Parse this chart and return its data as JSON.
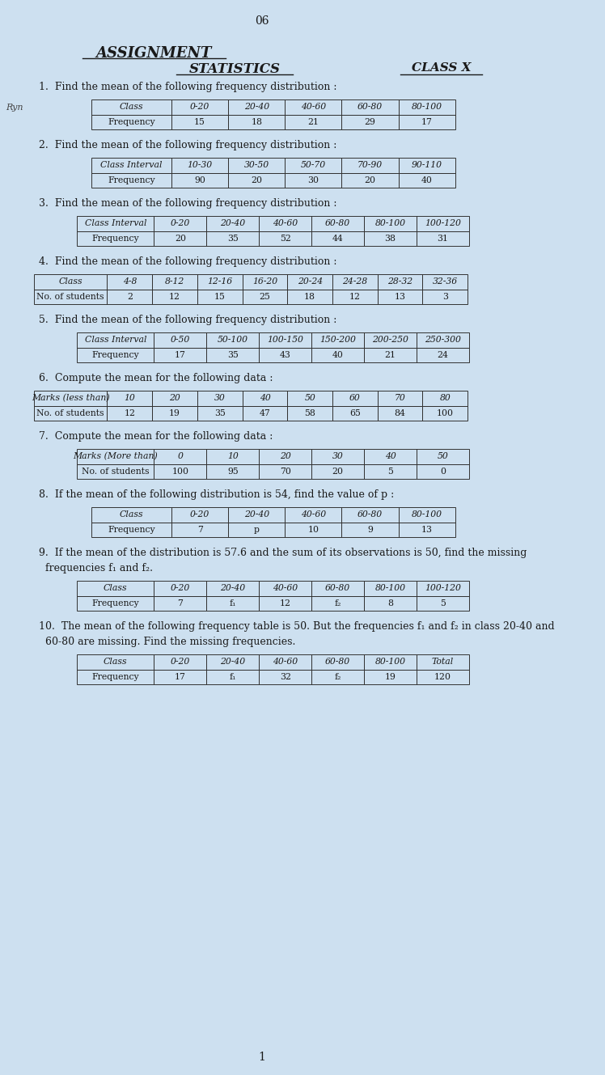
{
  "title": "ASSIGNMENT",
  "subtitle": "STATISTICS",
  "class_label": "CLASS X",
  "page_number": "06",
  "background_color": "#cde0f0",
  "text_color": "#1a1a1a",
  "questions": [
    {
      "number": "1.",
      "text": "Find the mean of the following frequency distribution :",
      "annotation": "Ryn",
      "table": {
        "headers": [
          "Class",
          "0-20",
          "20-40",
          "40-60",
          "60-80",
          "80-100"
        ],
        "rows": [
          [
            "Frequency",
            "15",
            "18",
            "21",
            "29",
            "17"
          ]
        ]
      }
    },
    {
      "number": "2.",
      "text": "Find the mean of the following frequency distribution :",
      "table": {
        "headers": [
          "Class Interval",
          "10-30",
          "30-50",
          "50-70",
          "70-90",
          "90-110"
        ],
        "rows": [
          [
            "Frequency",
            "90",
            "20",
            "30",
            "20",
            "40"
          ]
        ]
      }
    },
    {
      "number": "3.",
      "text": "Find the mean of the following frequency distribution :",
      "table": {
        "headers": [
          "Class Interval",
          "0-20",
          "20-40",
          "40-60",
          "60-80",
          "80-100",
          "100-120"
        ],
        "rows": [
          [
            "Frequency",
            "20",
            "35",
            "52",
            "44",
            "38",
            "31"
          ]
        ]
      }
    },
    {
      "number": "4.",
      "text": "Find the mean of the following frequency distribution :",
      "table": {
        "headers": [
          "Class",
          "4-8",
          "8-12",
          "12-16",
          "16-20",
          "20-24",
          "24-28",
          "28-32",
          "32-36"
        ],
        "rows": [
          [
            "No. of students",
            "2",
            "12",
            "15",
            "25",
            "18",
            "12",
            "13",
            "3"
          ]
        ]
      }
    },
    {
      "number": "5.",
      "text": "Find the mean of the following frequency distribution :",
      "table": {
        "headers": [
          "Class Interval",
          "0-50",
          "50-100",
          "100-150",
          "150-200",
          "200-250",
          "250-300"
        ],
        "rows": [
          [
            "Frequency",
            "17",
            "35",
            "43",
            "40",
            "21",
            "24"
          ]
        ]
      }
    },
    {
      "number": "6.",
      "text": "Compute the mean for the following data :",
      "table": {
        "headers": [
          "Marks (less than)",
          "10",
          "20",
          "30",
          "40",
          "50",
          "60",
          "70",
          "80"
        ],
        "rows": [
          [
            "No. of students",
            "12",
            "19",
            "35",
            "47",
            "58",
            "65",
            "84",
            "100"
          ]
        ]
      }
    },
    {
      "number": "7.",
      "text": "Compute the mean for the following data :",
      "table": {
        "headers": [
          "Marks (More than)",
          "0",
          "10",
          "20",
          "30",
          "40",
          "50"
        ],
        "rows": [
          [
            "No. of students",
            "100",
            "95",
            "70",
            "20",
            "5",
            "0"
          ]
        ]
      }
    },
    {
      "number": "8.",
      "text": "If the mean of the following distribution is 54, find the value of p :",
      "table": {
        "headers": [
          "Class",
          "0-20",
          "20-40",
          "40-60",
          "60-80",
          "80-100"
        ],
        "rows": [
          [
            "Frequency",
            "7",
            "p",
            "10",
            "9",
            "13"
          ]
        ]
      }
    },
    {
      "number": "9.",
      "text": "If the mean of the distribution is 57.6 and the sum of its observations is 50, find the missing\nfrequencies f₁ and f₂.",
      "table": {
        "headers": [
          "Class",
          "0-20",
          "20-40",
          "40-60",
          "60-80",
          "80-100",
          "100-120"
        ],
        "rows": [
          [
            "Frequency",
            "7",
            "f₁",
            "12",
            "f₂",
            "8",
            "5"
          ]
        ]
      }
    },
    {
      "number": "10.",
      "text": "The mean of the following frequency table is 50. But the frequencies f₁ and f₂ in class 20-40 and\n60-80 are missing. Find the missing frequencies.",
      "table": {
        "headers": [
          "Class",
          "0-20",
          "20-40",
          "40-60",
          "60-80",
          "80-100",
          "Total"
        ],
        "rows": [
          [
            "Frequency",
            "17",
            "f₁",
            "32",
            "f₂",
            "19",
            "120"
          ]
        ]
      }
    }
  ]
}
